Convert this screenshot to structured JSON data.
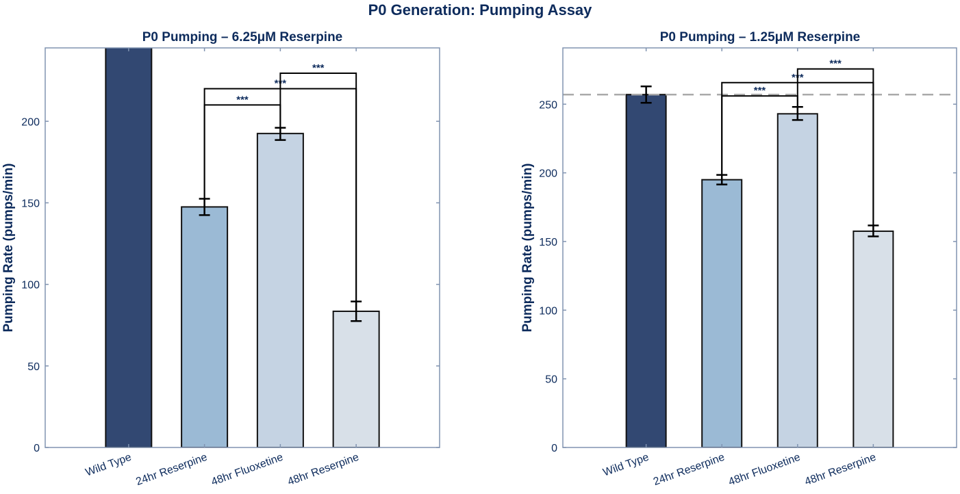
{
  "title": "P0 Generation: Pumping Assay",
  "chart_data": [
    {
      "type": "bar",
      "title": "P0 Pumping – 6.25μM Reserpine",
      "xlabel": "",
      "ylabel": "Pumping Rate (pumps/min)",
      "ylim": [
        0,
        245
      ],
      "yticks": [
        0,
        50,
        100,
        150,
        200
      ],
      "grid": false,
      "categories": [
        "Wild Type",
        "24hr Reserpine",
        "48hr Fluoxetine",
        "48hr Reserpine"
      ],
      "values": [
        257,
        147.5,
        192.5,
        83.5
      ],
      "error_low": [
        null,
        142.5,
        188.5,
        77.5
      ],
      "error_high": [
        null,
        152.5,
        196,
        89.5
      ],
      "colors": [
        "#324872",
        "#9bbad5",
        "#c5d3e3",
        "#d8e0e8"
      ],
      "significance": [
        {
          "from": 1,
          "to": 2,
          "label": "***",
          "y": 210
        },
        {
          "from": 1,
          "to": 3,
          "label": "***",
          "y": 220
        },
        {
          "from": 2,
          "to": 3,
          "label": "***",
          "y": 229.5
        }
      ]
    },
    {
      "type": "bar",
      "title": "P0 Pumping – 1.25μM Reserpine",
      "xlabel": "",
      "ylabel": "Pumping Rate (pumps/min)",
      "ylim": [
        0,
        291
      ],
      "yticks": [
        0,
        50,
        100,
        150,
        200,
        250
      ],
      "grid": false,
      "categories": [
        "Wild Type",
        "24hr Reserpine",
        "48hr Fluoxetine",
        "48hr Reserpine"
      ],
      "values": [
        257,
        195,
        243,
        157.5
      ],
      "error_low": [
        251,
        191.5,
        238.5,
        153.7
      ],
      "error_high": [
        263,
        198.5,
        248,
        161.7
      ],
      "colors": [
        "#324872",
        "#9bbad5",
        "#c5d3e3",
        "#d8e0e8"
      ],
      "reference_line": {
        "y": 257,
        "style": "dashed",
        "color": "#aaaaaa"
      },
      "significance": [
        {
          "from": 1,
          "to": 2,
          "label": "***",
          "y": 256
        },
        {
          "from": 1,
          "to": 3,
          "label": "***",
          "y": 265.7
        },
        {
          "from": 2,
          "to": 3,
          "label": "***",
          "y": 275.7
        }
      ]
    }
  ]
}
